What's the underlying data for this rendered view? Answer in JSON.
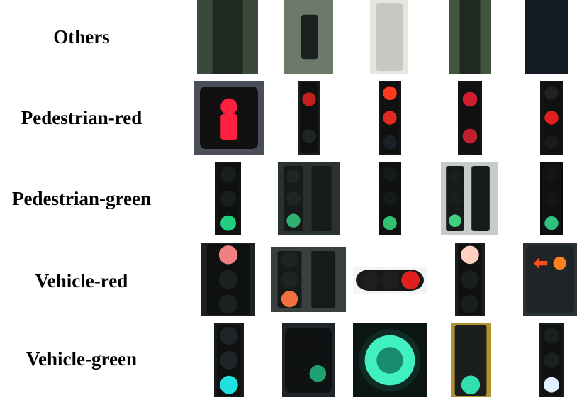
{
  "rows": [
    {
      "label": "Others",
      "tiles": [
        {
          "kind": "housing-bg",
          "bg": "#3a4a3a",
          "lamps": []
        },
        {
          "kind": "signal-side",
          "bg": "#6d7a6a",
          "lamps": []
        },
        {
          "kind": "gray-box",
          "bg": "#e6e6e0",
          "lamps": []
        },
        {
          "kind": "housing-bg",
          "bg": "#42563e",
          "lamps": []
        },
        {
          "kind": "dark-navy",
          "bg": "#141a24",
          "lamps": []
        }
      ]
    },
    {
      "label": "Pedestrian-red",
      "tiles": [
        {
          "kind": "ped-red-closeup",
          "bg": "#4a4e58",
          "lamps": [
            "#ff2040"
          ]
        },
        {
          "kind": "vertical",
          "bg": "#1a1f1c",
          "lamps": [
            "#c02020",
            "#202522"
          ]
        },
        {
          "kind": "vertical",
          "bg": "#151515",
          "lamps": [
            "#ff3a20",
            "#e02a20",
            "#1a2028"
          ]
        },
        {
          "kind": "vertical",
          "bg": "#141414",
          "lamps": [
            "#d02030",
            "#c02030"
          ]
        },
        {
          "kind": "vertical",
          "bg": "#101414",
          "lamps": [
            "#202020",
            "#e02020",
            "#1a1a1a"
          ]
        }
      ]
    },
    {
      "label": "Pedestrian-green",
      "tiles": [
        {
          "kind": "vertical",
          "bg": "#101614",
          "lamps": [
            "#1a1f1c",
            "#1a1f1c",
            "#20d080"
          ]
        },
        {
          "kind": "two-head",
          "bg": "#2a3230",
          "lamps": [
            "#202624",
            "#202624",
            "#30b070"
          ]
        },
        {
          "kind": "vertical",
          "bg": "#0f1212",
          "lamps": [
            "#161a18",
            "#161a18",
            "#30c070"
          ]
        },
        {
          "kind": "two-head-light",
          "bg": "#c8ccc8",
          "lamps": [
            "#1a1f1c",
            "#1a1f1c",
            "#40d080"
          ]
        },
        {
          "kind": "vertical",
          "bg": "#0a0c0c",
          "lamps": [
            "#141616",
            "#141616",
            "#30c080"
          ]
        }
      ]
    },
    {
      "label": "Vehicle-red",
      "tiles": [
        {
          "kind": "vertical",
          "bg": "#1c2220",
          "lamps": [
            "#f08080",
            "#1c2220",
            "#1c2220"
          ]
        },
        {
          "kind": "two-head-red",
          "bg": "#3a4040",
          "lamps": [
            "#1e2424",
            "#1e2424",
            "#f07040"
          ]
        },
        {
          "kind": "horizontal",
          "bg": "#f4f4f4",
          "lamps": [
            "#1c1f1e",
            "#1c1f1e",
            "#e02020"
          ]
        },
        {
          "kind": "vertical",
          "bg": "#1a1e1e",
          "lamps": [
            "#ffd0c0",
            "#1a1e1e",
            "#1a1e1e"
          ]
        },
        {
          "kind": "arrow-panel",
          "bg": "#2a3236",
          "lamps": [
            "#ff5020",
            "#ff8020"
          ]
        }
      ]
    },
    {
      "label": "Vehicle-green",
      "tiles": [
        {
          "kind": "vertical",
          "bg": "#141a1e",
          "lamps": [
            "#1e2428",
            "#1e2428",
            "#20e0e0"
          ]
        },
        {
          "kind": "quad",
          "bg": "#1e2428",
          "lamps": [
            "#111",
            "#111",
            "#111",
            "#20a070"
          ]
        },
        {
          "kind": "green-ring",
          "bg": "#0c1614",
          "lamps": [
            "#40f0c0"
          ]
        },
        {
          "kind": "vertical-yellow",
          "bg": "#b09030",
          "lamps": [
            "#1a1e1c",
            "#1a1e1c",
            "#30e0b0"
          ]
        },
        {
          "kind": "vertical",
          "bg": "#141c18",
          "lamps": [
            "#1a201e",
            "#1a201e",
            "#e0f0ff"
          ]
        }
      ]
    }
  ]
}
